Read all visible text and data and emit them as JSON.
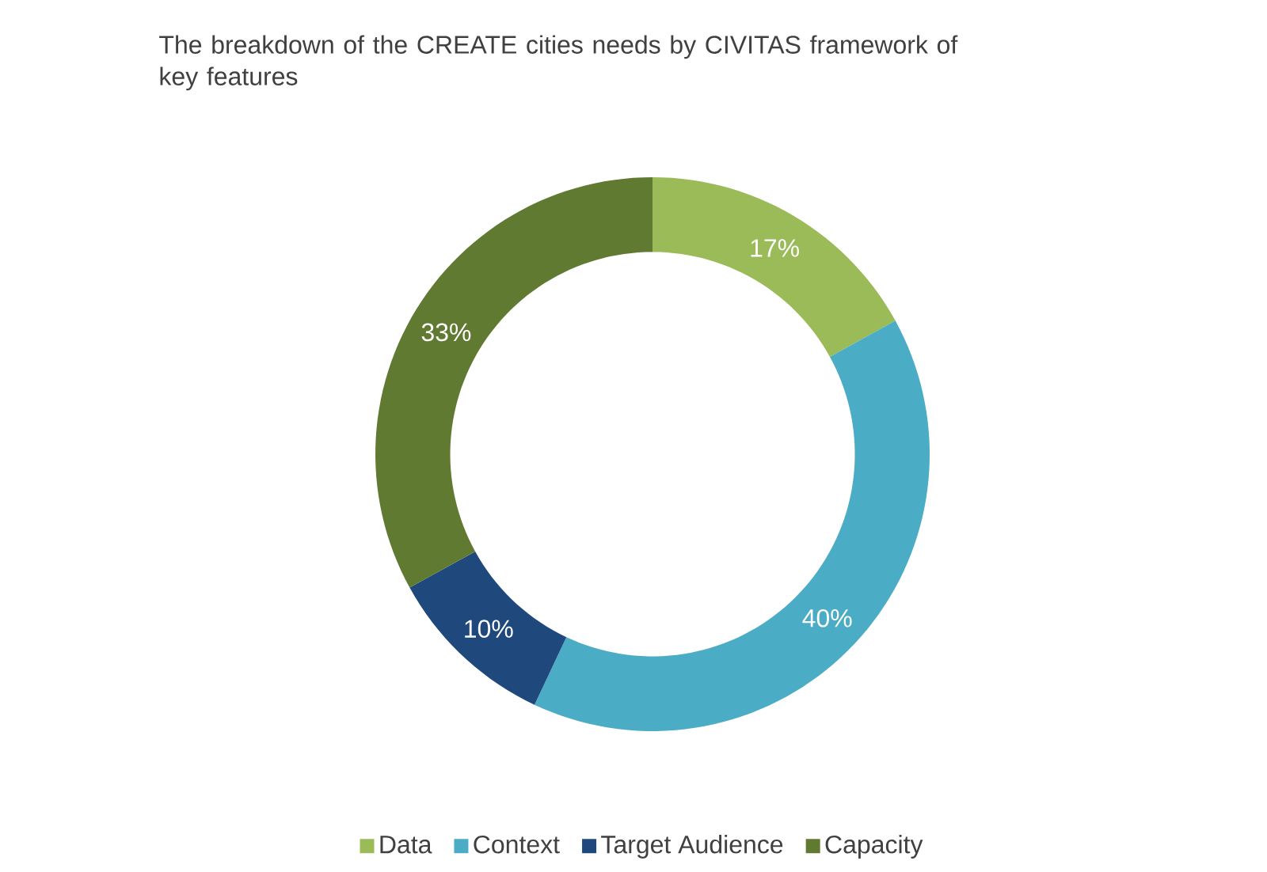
{
  "chart_data": {
    "type": "donut",
    "title": "The breakdown of the CREATE cities needs by CIVITAS framework of key features",
    "categories": [
      "Data",
      "Context",
      "Target Audience",
      "Capacity"
    ],
    "values": [
      17,
      40,
      10,
      33
    ],
    "value_labels": [
      "17%",
      "40%",
      "10%",
      "33%"
    ],
    "colors": [
      "#9bbb59",
      "#4bacc6",
      "#1f497d",
      "#617a32"
    ],
    "legend": "bottom"
  }
}
